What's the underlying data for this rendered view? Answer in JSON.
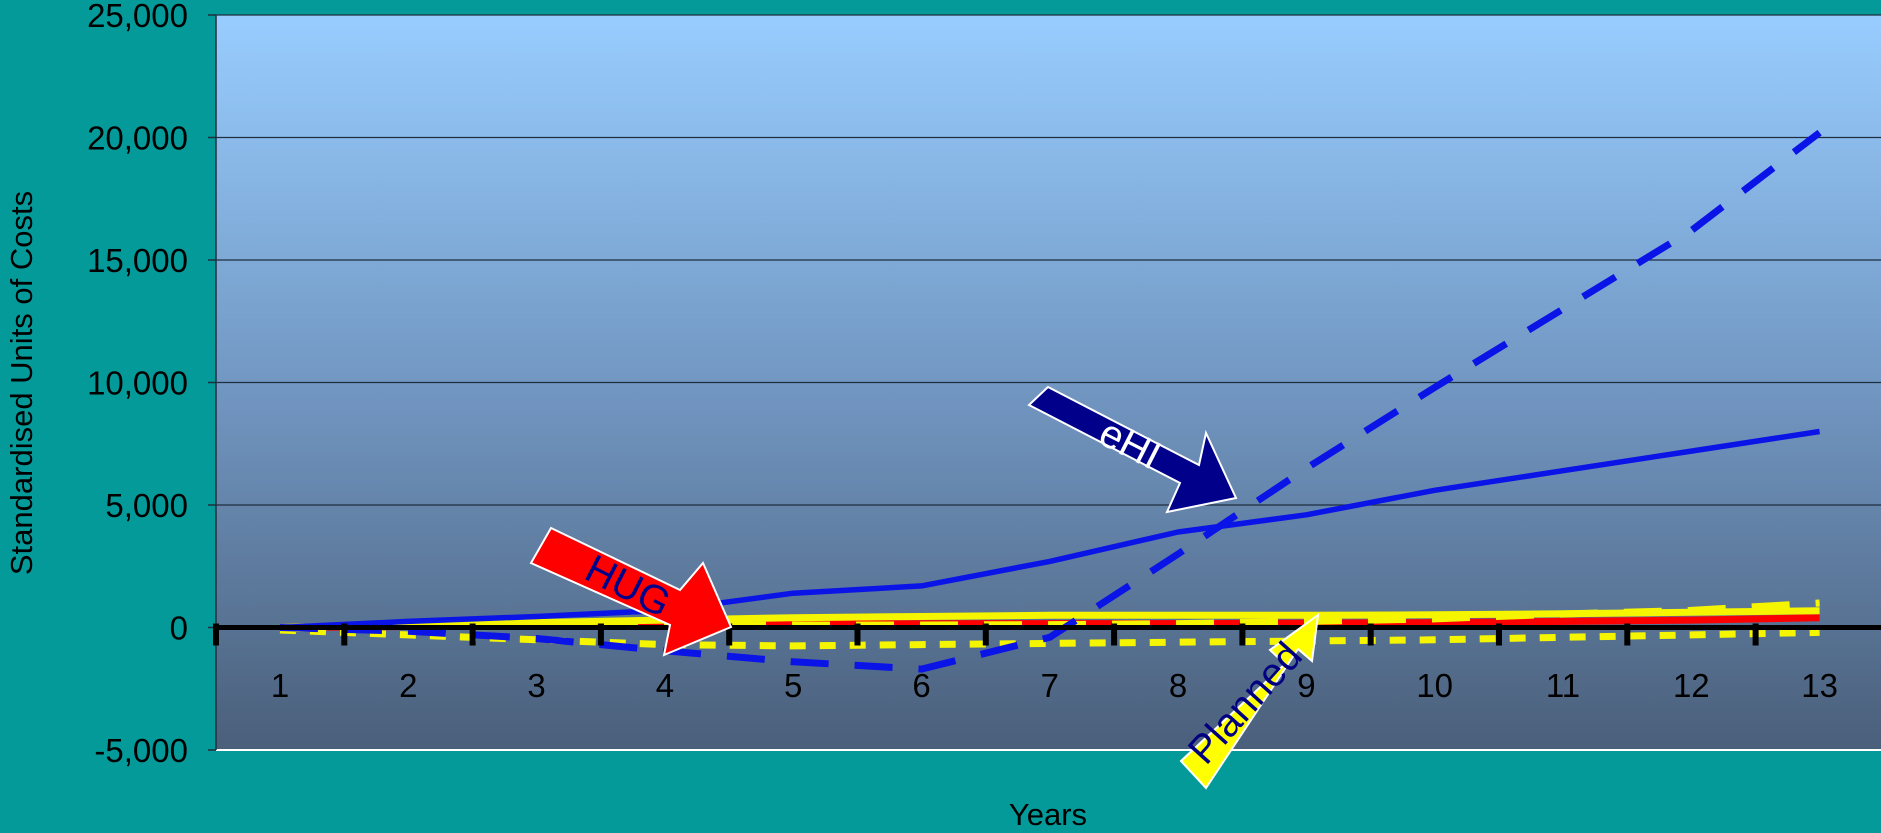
{
  "chart_data": {
    "type": "line",
    "title": "",
    "xlabel": "Years",
    "ylabel": "Standardised Units of Costs",
    "categories": [
      "1",
      "2",
      "3",
      "4",
      "5",
      "6",
      "7",
      "8",
      "9",
      "10",
      "11",
      "12",
      "13"
    ],
    "ylim": [
      -5000,
      25000
    ],
    "yticks": [
      -5000,
      0,
      5000,
      10000,
      15000,
      20000,
      25000
    ],
    "ytick_labels": [
      "-5,000",
      "0",
      "5,000",
      "10,000",
      "15,000",
      "20,000",
      "25,000"
    ],
    "grid": true,
    "series": [
      {
        "values": [
          0,
          250,
          450,
          700,
          1400,
          1700,
          2700,
          3900,
          4600,
          5600,
          6400,
          7200,
          8000
        ],
        "color": "#0a14e6",
        "style": "solid"
      },
      {
        "values": [
          0,
          -150,
          -450,
          -950,
          -1400,
          -1700,
          -400,
          3000,
          6500,
          9800,
          13000,
          16200,
          20200
        ],
        "color": "#0a14e6",
        "style": "dashed"
      },
      {
        "values": [
          0,
          100,
          200,
          300,
          400,
          450,
          500,
          500,
          500,
          520,
          560,
          620,
          680
        ],
        "color": "#f5f500",
        "style": "solid"
      },
      {
        "values": [
          -100,
          -300,
          -500,
          -700,
          -750,
          -700,
          -650,
          -600,
          -550,
          -500,
          -400,
          -300,
          -200
        ],
        "color": "#f5f500",
        "style": "dotted"
      },
      {
        "values": [
          0,
          40,
          80,
          100,
          150,
          150,
          160,
          160,
          180,
          200,
          250,
          300,
          400
        ],
        "color": "#ff0000",
        "style": "solid"
      },
      {
        "values": [
          -50,
          20,
          50,
          80,
          100,
          100,
          120,
          160,
          250,
          350,
          550,
          700,
          1000
        ],
        "color": "#f5f500",
        "style": "dashed"
      }
    ],
    "annotations": [
      {
        "label": "eHI",
        "fill": "#00008b",
        "text_color": "#ffffff",
        "points_to": "solid blue line"
      },
      {
        "label": "HUG",
        "fill": "#ff0000",
        "text_color": "#00008b",
        "points_to": "dashed blue line"
      },
      {
        "label": "Planned",
        "fill": "#ffff00",
        "text_color": "#000080",
        "points_to": "yellow lines"
      }
    ],
    "colors": {
      "background": "#049a9a",
      "plot_top": "#98cdff",
      "plot_bottom": "#4a5f7a",
      "zero_line": "#000000"
    }
  }
}
